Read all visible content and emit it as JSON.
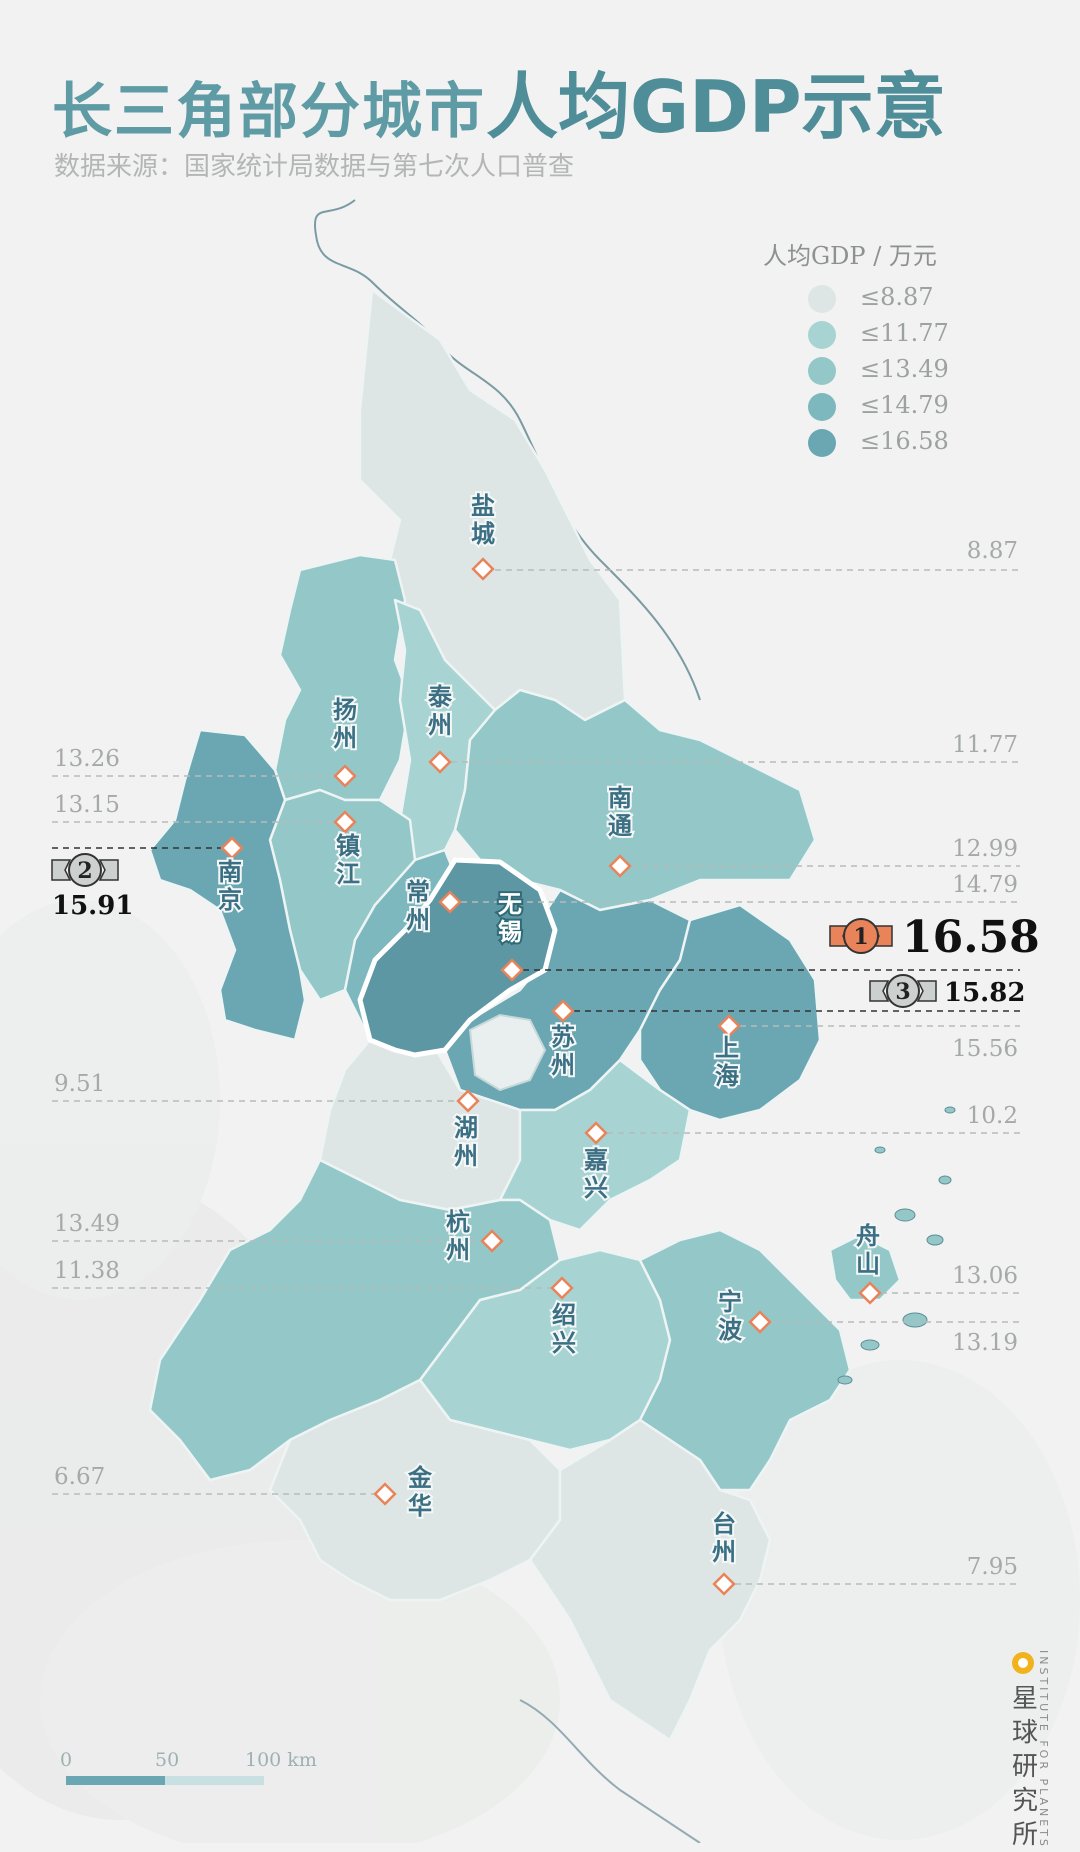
{
  "title": {
    "part1": "长三角部分城市",
    "part2": "人均GDP示意"
  },
  "subtitle": "数据来源：国家统计局数据与第七次人口普查",
  "legend": {
    "title": "人均GDP / 万元",
    "items": [
      {
        "label": "≤8.87",
        "color": "#dde5e5"
      },
      {
        "label": "≤11.77",
        "color": "#a7d4d3"
      },
      {
        "label": "≤13.49",
        "color": "#93c7c8"
      },
      {
        "label": "≤14.79",
        "color": "#7db8be"
      },
      {
        "label": "≤16.58",
        "color": "#6aa7b2"
      }
    ]
  },
  "cities": [
    {
      "name": "盐城",
      "value": "8.87"
    },
    {
      "name": "扬州",
      "value": "13.26"
    },
    {
      "name": "泰州",
      "value": "11.77"
    },
    {
      "name": "镇江",
      "value": "13.15"
    },
    {
      "name": "南京",
      "value": "15.91"
    },
    {
      "name": "南通",
      "value": "12.99"
    },
    {
      "name": "常州",
      "value": "14.79"
    },
    {
      "name": "无锡",
      "value": "16.58"
    },
    {
      "name": "苏州",
      "value": "15.82"
    },
    {
      "name": "上海",
      "value": "15.56"
    },
    {
      "name": "湖州",
      "value": "9.51"
    },
    {
      "name": "嘉兴",
      "value": "10.2"
    },
    {
      "name": "杭州",
      "value": "13.49"
    },
    {
      "name": "绍兴",
      "value": "11.38"
    },
    {
      "name": "舟山",
      "value": "13.06"
    },
    {
      "name": "宁波",
      "value": "13.19"
    },
    {
      "name": "金华",
      "value": "6.67"
    },
    {
      "name": "台州",
      "value": "7.95"
    }
  ],
  "ranks": [
    {
      "rank": "1",
      "value": "16.58"
    },
    {
      "rank": "2",
      "value": "15.91"
    },
    {
      "rank": "3",
      "value": "15.82"
    }
  ],
  "scale_bar": {
    "labels": [
      "0",
      "50",
      "100 km"
    ]
  },
  "brand": {
    "cn": "星球研究所",
    "en": "INSTITUTE FOR PLANETS"
  }
}
